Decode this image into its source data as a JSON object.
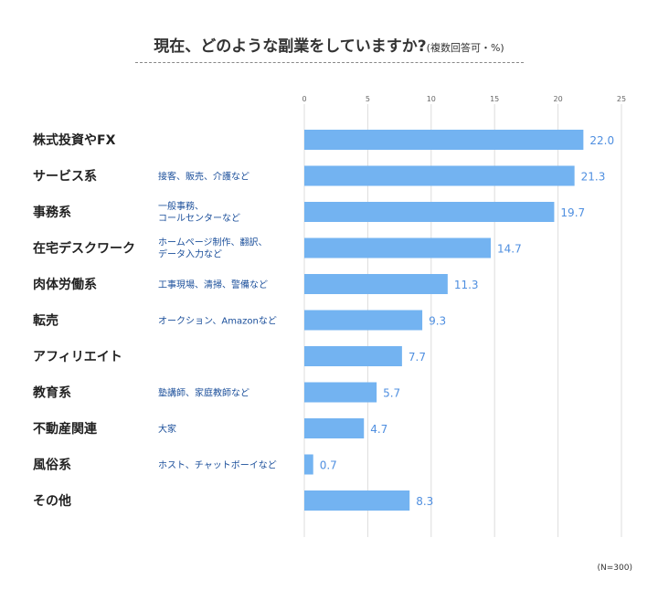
{
  "title": {
    "main": "現在、どのような副業をしていますか?",
    "sub": "(複数回答可・%)"
  },
  "footnote": "(N=300)",
  "colors": {
    "bar": "#73b3f1",
    "value": "#4f8fe0",
    "note": "#1a4e9a",
    "grid": "#dddddd"
  },
  "chart_data": {
    "type": "bar",
    "orientation": "horizontal",
    "title": "現在、どのような副業をしていますか?(複数回答可・%)",
    "xlabel": "",
    "ylabel": "",
    "xlim": [
      0,
      25
    ],
    "xticks": [
      0,
      5,
      10,
      15,
      20,
      25
    ],
    "grid": "vertical",
    "categories": [
      "株式投資やFX",
      "サービス系",
      "事務系",
      "在宅デスクワーク",
      "肉体労働系",
      "転売",
      "アフィリエイト",
      "教育系",
      "不動産関連",
      "風俗系",
      "その他"
    ],
    "notes": [
      [],
      [
        "接客、販売、介護など"
      ],
      [
        "一般事務、",
        "コールセンターなど"
      ],
      [
        "ホームページ制作、翻訳、",
        "データ入力など"
      ],
      [
        "工事現場、清掃、警備など"
      ],
      [
        "オークション、Amazonなど"
      ],
      [],
      [
        "塾講師、家庭教師など"
      ],
      [
        "大家"
      ],
      [
        "ホスト、チャットボーイなど"
      ],
      []
    ],
    "values": [
      22.0,
      21.3,
      19.7,
      14.7,
      11.3,
      9.3,
      7.7,
      5.7,
      4.7,
      0.7,
      8.3
    ]
  }
}
